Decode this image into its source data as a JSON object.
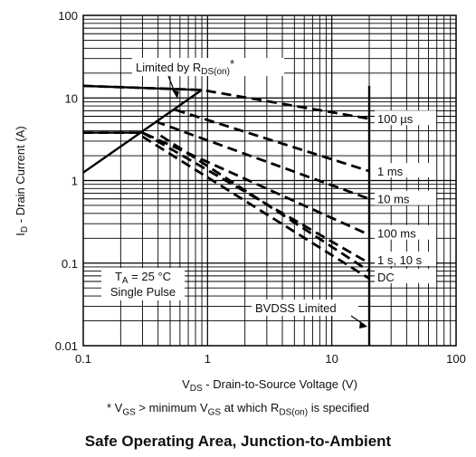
{
  "chart_data": {
    "type": "line",
    "title": "Safe Operating Area, Junction-to-Ambient",
    "xlabel": {
      "prefix": "V",
      "sub": "DS",
      "suffix": " - Drain-to-Source Voltage (V)"
    },
    "ylabel": {
      "prefix": "I",
      "sub": "D",
      "suffix": " - Drain Current (A)"
    },
    "footnote": {
      "p1": "* V",
      "s1": "GS",
      "p2": " > minimum V",
      "s2": "GS",
      "p3": " at which R",
      "s3": "DS(on)",
      "p4": " is specified"
    },
    "x_scale": "log",
    "y_scale": "log",
    "xlim": [
      0.1,
      100
    ],
    "ylim": [
      0.01,
      100
    ],
    "x_ticks": [
      "0.1",
      "1",
      "10",
      "100"
    ],
    "y_ticks": [
      "0.01",
      "0.1",
      "1",
      "10",
      "100"
    ],
    "grid": true,
    "rdson_limit": {
      "label_prefix": "Limited by R",
      "label_sub": "DS(on)",
      "label_suffix": "*",
      "points": [
        [
          0.1,
          1.25
        ],
        [
          0.9,
          12.5
        ]
      ]
    },
    "bvdss_limit": {
      "label": "BVDSS Limited",
      "x": 20
    },
    "ambient_note": {
      "line1_prefix": "T",
      "line1_sub": "A",
      "line1_suffix": " = 25 °C",
      "line2": "Single Pulse"
    },
    "series": [
      {
        "name": "100 µs",
        "points": [
          [
            0.1,
            14
          ],
          [
            0.9,
            12.5
          ],
          [
            20,
            5.6
          ]
        ]
      },
      {
        "name": "1 ms",
        "points": [
          [
            0.55,
            7.2
          ],
          [
            20,
            1.3
          ]
        ]
      },
      {
        "name": "10 ms",
        "points": [
          [
            0.38,
            5.2
          ],
          [
            20,
            0.6
          ]
        ]
      },
      {
        "name": "100 ms",
        "points": [
          [
            0.1,
            3.8
          ],
          [
            0.3,
            3.8
          ],
          [
            20,
            0.22
          ]
        ]
      },
      {
        "name": "1 s, 10 s",
        "points": [
          [
            0.3,
            3.8
          ],
          [
            20,
            0.1
          ]
        ]
      },
      {
        "name": "DC",
        "points": [
          [
            0.3,
            3.4
          ],
          [
            20,
            0.065
          ]
        ]
      }
    ],
    "dc_extra_line": {
      "points": [
        [
          0.42,
          3.5
        ],
        [
          20,
          0.08
        ]
      ]
    },
    "series_label_y": [
      5.6,
      1.3,
      0.6,
      0.23,
      0.11,
      0.068
    ]
  }
}
